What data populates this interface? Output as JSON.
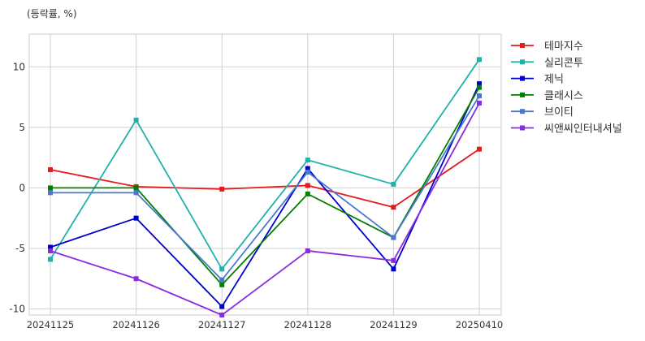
{
  "chart_data": {
    "type": "line",
    "ylabel": "(등락률, %)",
    "x": [
      "20241125",
      "20241126",
      "20241127",
      "20241128",
      "20241129",
      "20250410"
    ],
    "ylim": [
      -10.5,
      12.7
    ],
    "yticks": [
      10,
      5,
      0,
      -5,
      -10
    ],
    "grid": true,
    "legend_position": "right",
    "marker": "square",
    "series": [
      {
        "name": "테마지수",
        "color": "#e41a1c",
        "values": [
          1.5,
          0.1,
          -0.1,
          0.2,
          -1.6,
          3.2
        ]
      },
      {
        "name": "실리콘투",
        "color": "#20b2aa",
        "values": [
          -5.9,
          5.6,
          -6.7,
          2.3,
          0.3,
          10.6
        ]
      },
      {
        "name": "제닉",
        "color": "#0000cd",
        "values": [
          -4.9,
          -2.5,
          -9.8,
          1.6,
          -6.7,
          8.6
        ]
      },
      {
        "name": "클래시스",
        "color": "#008000",
        "values": [
          0.0,
          0.0,
          -8.0,
          -0.5,
          -4.1,
          8.3
        ]
      },
      {
        "name": "브이티",
        "color": "#4878cf",
        "values": [
          -0.4,
          -0.4,
          -7.6,
          1.3,
          -4.1,
          7.6
        ]
      },
      {
        "name": "씨앤씨인터내셔널",
        "color": "#8a2be2",
        "values": [
          -5.2,
          -7.5,
          -10.5,
          -5.2,
          -6.0,
          7.0
        ]
      }
    ]
  }
}
